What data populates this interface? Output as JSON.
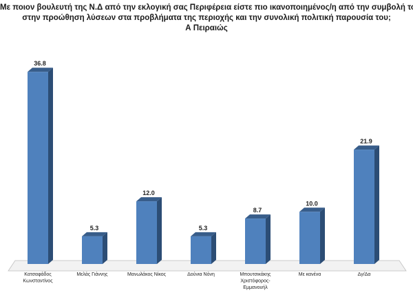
{
  "chart_data": {
    "type": "bar",
    "title_lines": [
      "Με ποιον βουλευτή της Ν.Δ από την εκλογική σας Περιφέρεια είστε πιο ικανοποιημένος/η από την συμβολή του",
      "στην προώθηση λύσεων στα προβλήματα της περιοχής και την συνολική πολιτική παρουσία του;",
      "Α Πειραιώς"
    ],
    "categories": [
      [
        "Κατσαφάδος",
        "Κωνσταντίνος"
      ],
      [
        "Μελάς Γιάννης"
      ],
      [
        "Μανωλάκος Νίκος"
      ],
      [
        "Δούνια Νόνη"
      ],
      [
        "Μπουτσικάκης",
        "Χριστόφορος-",
        "Εμμανουήλ"
      ],
      [
        "Με κανένα"
      ],
      [
        "Δγ/Δα"
      ]
    ],
    "values": [
      36.8,
      5.3,
      12.0,
      5.3,
      8.7,
      10.0,
      21.9
    ],
    "value_labels": [
      "36.8",
      "5.3",
      "12.0",
      "5.3",
      "8.7",
      "10.0",
      "21.9"
    ],
    "ylim": [
      0,
      40
    ],
    "grid": false,
    "colors": {
      "bar_front": "#4f81bd",
      "bar_side": "#2c4d75",
      "bar_top": "#385d8a",
      "floor": "#f2f2f2"
    }
  }
}
